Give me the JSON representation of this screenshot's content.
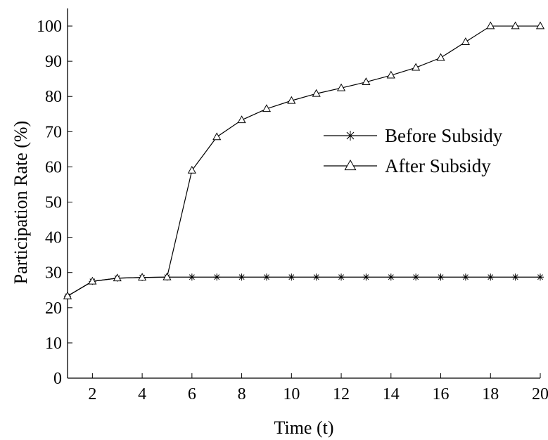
{
  "chart_data": {
    "type": "line",
    "xlabel": "Time (t)",
    "ylabel": "Participation Rate (%)",
    "xlim": [
      1,
      20
    ],
    "ylim": [
      0,
      105
    ],
    "x_ticks": [
      2,
      4,
      6,
      8,
      10,
      12,
      14,
      16,
      18,
      20
    ],
    "y_ticks": [
      0,
      10,
      20,
      30,
      40,
      50,
      60,
      70,
      80,
      90,
      100
    ],
    "grid": false,
    "legend_position": "center-right",
    "x": [
      1,
      2,
      3,
      4,
      5,
      6,
      7,
      8,
      9,
      10,
      11,
      12,
      13,
      14,
      15,
      16,
      17,
      18,
      19,
      20
    ],
    "series": [
      {
        "name": "Before Subsidy",
        "marker": "asterisk",
        "color": "#000000",
        "values": [
          23.3,
          27.5,
          28.4,
          28.6,
          28.7,
          28.7,
          28.7,
          28.7,
          28.7,
          28.7,
          28.7,
          28.7,
          28.7,
          28.7,
          28.7,
          28.7,
          28.7,
          28.7,
          28.7,
          28.7
        ]
      },
      {
        "name": "After Subsidy",
        "marker": "triangle",
        "color": "#000000",
        "values": [
          23.3,
          27.5,
          28.4,
          28.6,
          28.7,
          59.0,
          68.5,
          73.3,
          76.5,
          78.8,
          80.8,
          82.4,
          84.1,
          86.0,
          88.2,
          91.0,
          95.5,
          100.0,
          100.0,
          100.0
        ]
      }
    ]
  }
}
